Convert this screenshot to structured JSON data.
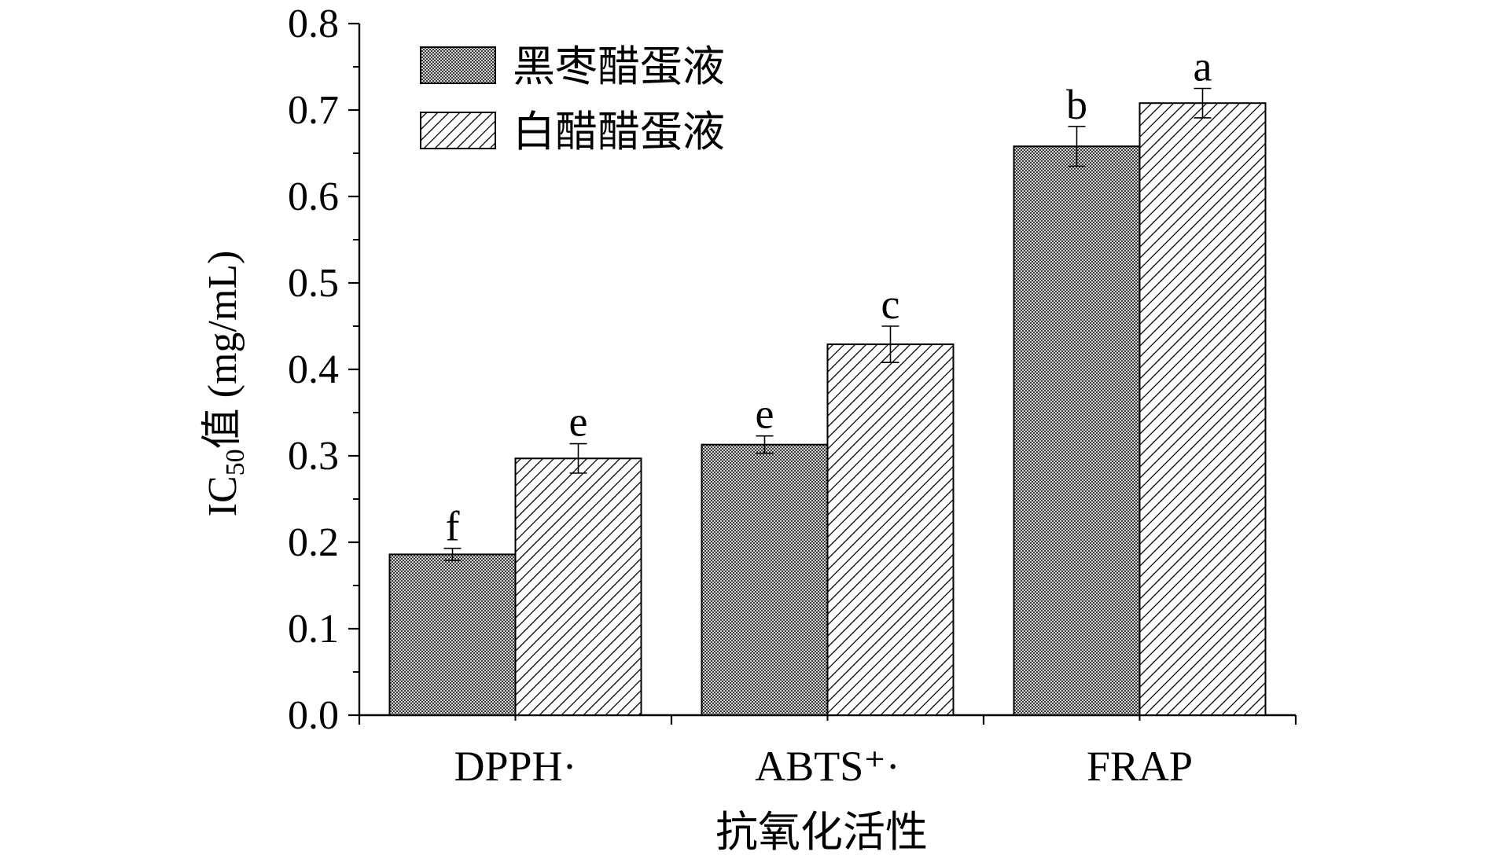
{
  "chart_data": {
    "type": "bar",
    "categories": [
      "DPPH·",
      "ABTS⁺·",
      "FRAP"
    ],
    "series": [
      {
        "name": "黑枣醋蛋液",
        "pattern": "crosshatch",
        "values": [
          0.186,
          0.313,
          0.658
        ],
        "errors": [
          0.007,
          0.01,
          0.023
        ],
        "labels": [
          "f",
          "e",
          "b"
        ]
      },
      {
        "name": "白醋醋蛋液",
        "pattern": "diagonal",
        "values": [
          0.297,
          0.429,
          0.708
        ],
        "errors": [
          0.017,
          0.021,
          0.017
        ],
        "labels": [
          "e",
          "c",
          "a"
        ]
      }
    ],
    "ylim": [
      0,
      0.8
    ],
    "yticks": [
      "0.0",
      "0.1",
      "0.2",
      "0.3",
      "0.4",
      "0.5",
      "0.6",
      "0.7",
      "0.8"
    ],
    "ylabel": {
      "prefix": "IC",
      "subscript": "50",
      "suffix": "值 (mg/mL)"
    },
    "xlabel": "抗氧化活性",
    "legend_position": "top-left",
    "grid": false,
    "colors": {
      "stroke": "#000000",
      "background": "#ffffff"
    }
  }
}
